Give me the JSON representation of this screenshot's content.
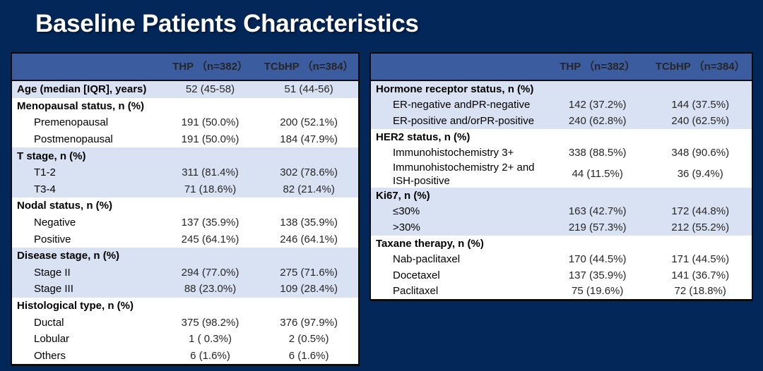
{
  "title": "Baseline Patients Characteristics",
  "colors": {
    "slide_bg": "#04275a",
    "header_bg": "#3c5ca0",
    "shaded_row_bg": "#d9e2f3",
    "white_row_bg": "#ffffff",
    "border": "#0b0b0b",
    "header_text": "#ffffff",
    "label_text": "#000000",
    "value_text": "#262626"
  },
  "tables": [
    {
      "name": "patient-demographics-table",
      "header": {
        "label": "",
        "col1": "THP\n（n=382）",
        "col2": "TCbHP\n（n=384）"
      },
      "groups": [
        {
          "shaded": true,
          "rows": [
            {
              "label": "Age (median [IQR], years)",
              "bold": true,
              "indent": false,
              "thp": "52 (45-58)",
              "tcbhp": "51 (44-56)"
            }
          ]
        },
        {
          "shaded": false,
          "rows": [
            {
              "label": "Menopausal status, n (%)",
              "bold": true,
              "indent": false,
              "thp": "",
              "tcbhp": ""
            },
            {
              "label": "Premenopausal",
              "bold": false,
              "indent": true,
              "thp": "191 (50.0%)",
              "tcbhp": "200 (52.1%)"
            },
            {
              "label": "Postmenopausal",
              "bold": false,
              "indent": true,
              "thp": "191 (50.0%)",
              "tcbhp": "184 (47.9%)"
            }
          ]
        },
        {
          "shaded": true,
          "rows": [
            {
              "label": "T stage, n (%)",
              "bold": true,
              "indent": false,
              "thp": "",
              "tcbhp": ""
            },
            {
              "label": "T1-2",
              "bold": false,
              "indent": true,
              "thp": "311 (81.4%)",
              "tcbhp": "302 (78.6%)"
            },
            {
              "label": "T3-4",
              "bold": false,
              "indent": true,
              "thp": "71 (18.6%)",
              "tcbhp": "82 (21.4%)"
            }
          ]
        },
        {
          "shaded": false,
          "rows": [
            {
              "label": "Nodal status, n (%)",
              "bold": true,
              "indent": false,
              "thp": "",
              "tcbhp": ""
            },
            {
              "label": "Negative",
              "bold": false,
              "indent": true,
              "thp": "137 (35.9%)",
              "tcbhp": "138 (35.9%)"
            },
            {
              "label": "Positive",
              "bold": false,
              "indent": true,
              "thp": "245 (64.1%)",
              "tcbhp": "246 (64.1%)"
            }
          ]
        },
        {
          "shaded": true,
          "rows": [
            {
              "label": "Disease stage, n (%)",
              "bold": true,
              "indent": false,
              "thp": "",
              "tcbhp": ""
            },
            {
              "label": "Stage II",
              "bold": false,
              "indent": true,
              "thp": "294 (77.0%)",
              "tcbhp": "275 (71.6%)"
            },
            {
              "label": "Stage III",
              "bold": false,
              "indent": true,
              "thp": "88 (23.0%)",
              "tcbhp": "109 (28.4%)"
            }
          ]
        },
        {
          "shaded": false,
          "rows": [
            {
              "label": "Histological type, n (%)",
              "bold": true,
              "indent": false,
              "thp": "",
              "tcbhp": ""
            },
            {
              "label": "Ductal",
              "bold": false,
              "indent": true,
              "thp": "375 (98.2%)",
              "tcbhp": "376 (97.9%)"
            },
            {
              "label": "Lobular",
              "bold": false,
              "indent": true,
              "thp": "1 ( 0.3%)",
              "tcbhp": "2 (0.5%)"
            },
            {
              "label": "Others",
              "bold": false,
              "indent": true,
              "thp": "6 (1.6%)",
              "tcbhp": "6 (1.6%)"
            }
          ]
        }
      ]
    },
    {
      "name": "tumor-and-treatment-table",
      "header": {
        "label": "",
        "col1": "THP\n（n=382）",
        "col2": "TCbHP\n（n=384）"
      },
      "groups": [
        {
          "shaded": true,
          "rows": [
            {
              "label": "Hormone receptor status, n (%)",
              "bold": true,
              "indent": false,
              "thp": "",
              "tcbhp": ""
            },
            {
              "label": "ER-negative andPR-negative",
              "bold": false,
              "indent": true,
              "thp": "142 (37.2%)",
              "tcbhp": "144 (37.5%)"
            },
            {
              "label": "ER-positive and/orPR-positive",
              "bold": false,
              "indent": true,
              "thp": "240 (62.8%)",
              "tcbhp": "240 (62.5%)"
            }
          ]
        },
        {
          "shaded": false,
          "rows": [
            {
              "label": "HER2 status, n (%)",
              "bold": true,
              "indent": false,
              "thp": "",
              "tcbhp": ""
            },
            {
              "label": "Immunohistochemistry 3+",
              "bold": false,
              "indent": true,
              "thp": "338 (88.5%)",
              "tcbhp": "348 (90.6%)"
            },
            {
              "label": "Immunohistochemistry 2+ and\nISH-positive",
              "bold": false,
              "indent": true,
              "thp": "44 (11.5%)",
              "tcbhp": "36 (9.4%)"
            }
          ]
        },
        {
          "shaded": true,
          "rows": [
            {
              "label": "Ki67, n (%)",
              "bold": true,
              "indent": false,
              "thp": "",
              "tcbhp": ""
            },
            {
              "label": "≤30%",
              "bold": false,
              "indent": true,
              "thp": "163 (42.7%)",
              "tcbhp": "172 (44.8%)"
            },
            {
              "label": ">30%",
              "bold": false,
              "indent": true,
              "thp": "219 (57.3%)",
              "tcbhp": "212 (55.2%)"
            }
          ]
        },
        {
          "shaded": false,
          "rows": [
            {
              "label": "Taxane therapy, n (%)",
              "bold": true,
              "indent": false,
              "thp": "",
              "tcbhp": ""
            },
            {
              "label": "Nab-paclitaxel",
              "bold": false,
              "indent": true,
              "thp": "170 (44.5%)",
              "tcbhp": "171 (44.5%)"
            },
            {
              "label": "Docetaxel",
              "bold": false,
              "indent": true,
              "thp": "137 (35.9%)",
              "tcbhp": "141 (36.7%)"
            },
            {
              "label": "Paclitaxel",
              "bold": false,
              "indent": true,
              "thp": "75 (19.6%)",
              "tcbhp": "72 (18.8%)"
            }
          ]
        }
      ]
    }
  ]
}
